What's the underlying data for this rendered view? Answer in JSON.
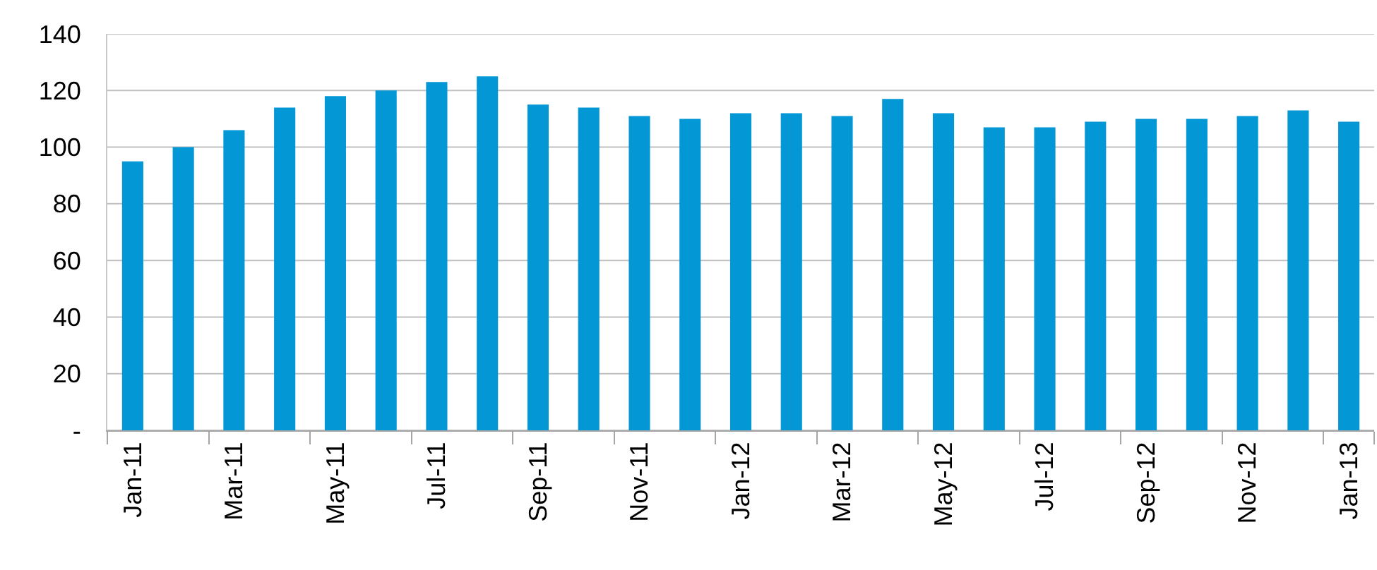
{
  "chart_data": {
    "type": "bar",
    "categories": [
      "Jan-11",
      null,
      "Mar-11",
      null,
      "May-11",
      null,
      "Jul-11",
      null,
      "Sep-11",
      null,
      "Nov-11",
      null,
      "Jan-12",
      null,
      "Mar-12",
      null,
      "May-12",
      null,
      "Jul-12",
      null,
      "Sep-12",
      null,
      "Nov-12",
      null,
      "Jan-13"
    ],
    "values": [
      95,
      100,
      106,
      114,
      118,
      120,
      123,
      125,
      115,
      114,
      111,
      110,
      112,
      112,
      111,
      117,
      112,
      107,
      107,
      109,
      110,
      110,
      111,
      113,
      109
    ],
    "color": "#0397d6",
    "ylim": [
      0,
      140
    ],
    "yticks": [
      {
        "value": 0,
        "label": "-"
      },
      20,
      40,
      60,
      80,
      100,
      120,
      140
    ],
    "grid": "y"
  }
}
